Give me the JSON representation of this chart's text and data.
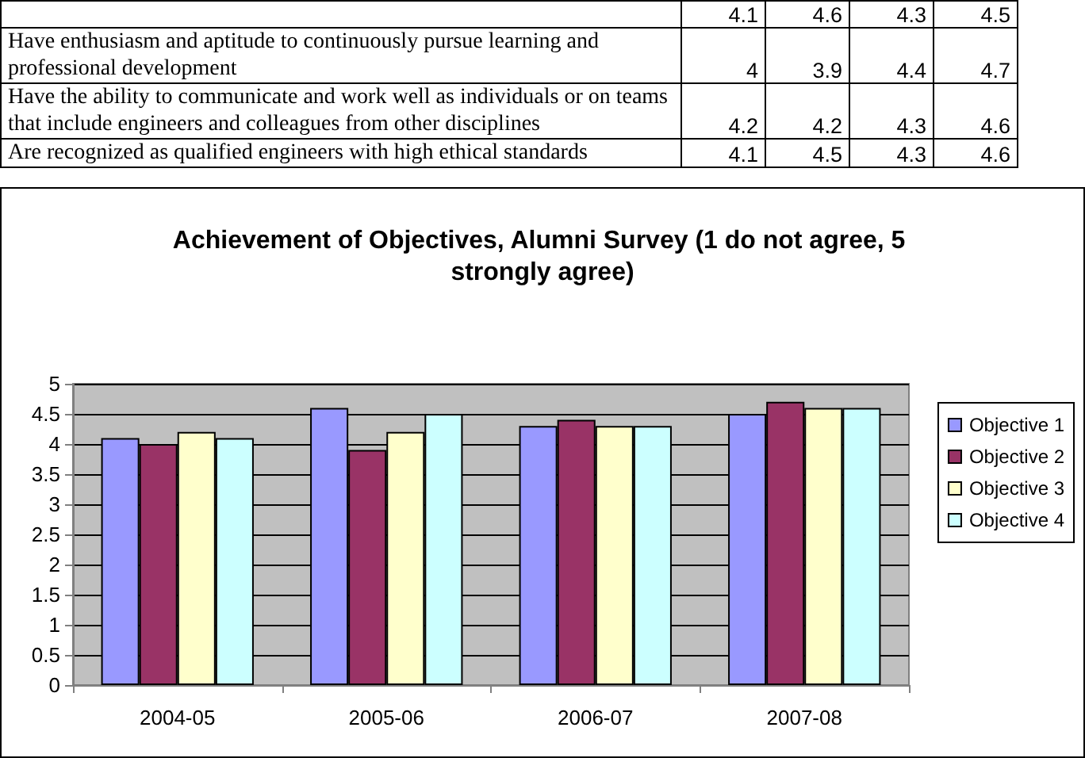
{
  "chart_data": [
    {
      "type": "other",
      "annotations": [
        "4.1",
        "4.6",
        "4.3",
        "4.5",
        "Have enthusiasm and aptitude to continuously pursue learning and professional development",
        "4",
        "3.9",
        "4.4",
        "4.7",
        "Have the ability to communicate and work well as individuals or on teams that include engineers and colleagues from other disciplines",
        "4.2",
        "4.2",
        "4.3",
        "4.6",
        "Are recognized as qualified engineers with high ethical standards",
        "4.1",
        "4.5",
        "4.3",
        "4.6"
      ]
    },
    {
      "type": "bar",
      "title": "Achievement of Objectives, Alumni Survey (1 do not agree, 5 strongly agree)",
      "categories": [
        "2004-05",
        "2005-06",
        "2006-07",
        "2007-08"
      ],
      "series": [
        {
          "name": "Objective 1",
          "color": "#9999ff",
          "values": [
            4.1,
            4.6,
            4.3,
            4.5
          ]
        },
        {
          "name": "Objective 2",
          "color": "#993366",
          "values": [
            4,
            3.9,
            4.4,
            4.7
          ]
        },
        {
          "name": "Objective 3",
          "color": "#ffffcc",
          "values": [
            4.2,
            4.2,
            4.3,
            4.6
          ]
        },
        {
          "name": "Objective 4",
          "color": "#ccffff",
          "values": [
            4.1,
            4.5,
            4.3,
            4.6
          ]
        }
      ],
      "ylim": [
        0,
        5
      ],
      "yticks": [
        0,
        0.5,
        1,
        1.5,
        2,
        2.5,
        3,
        3.5,
        4,
        4.5,
        5
      ],
      "grid": "y",
      "legend": "right"
    }
  ]
}
